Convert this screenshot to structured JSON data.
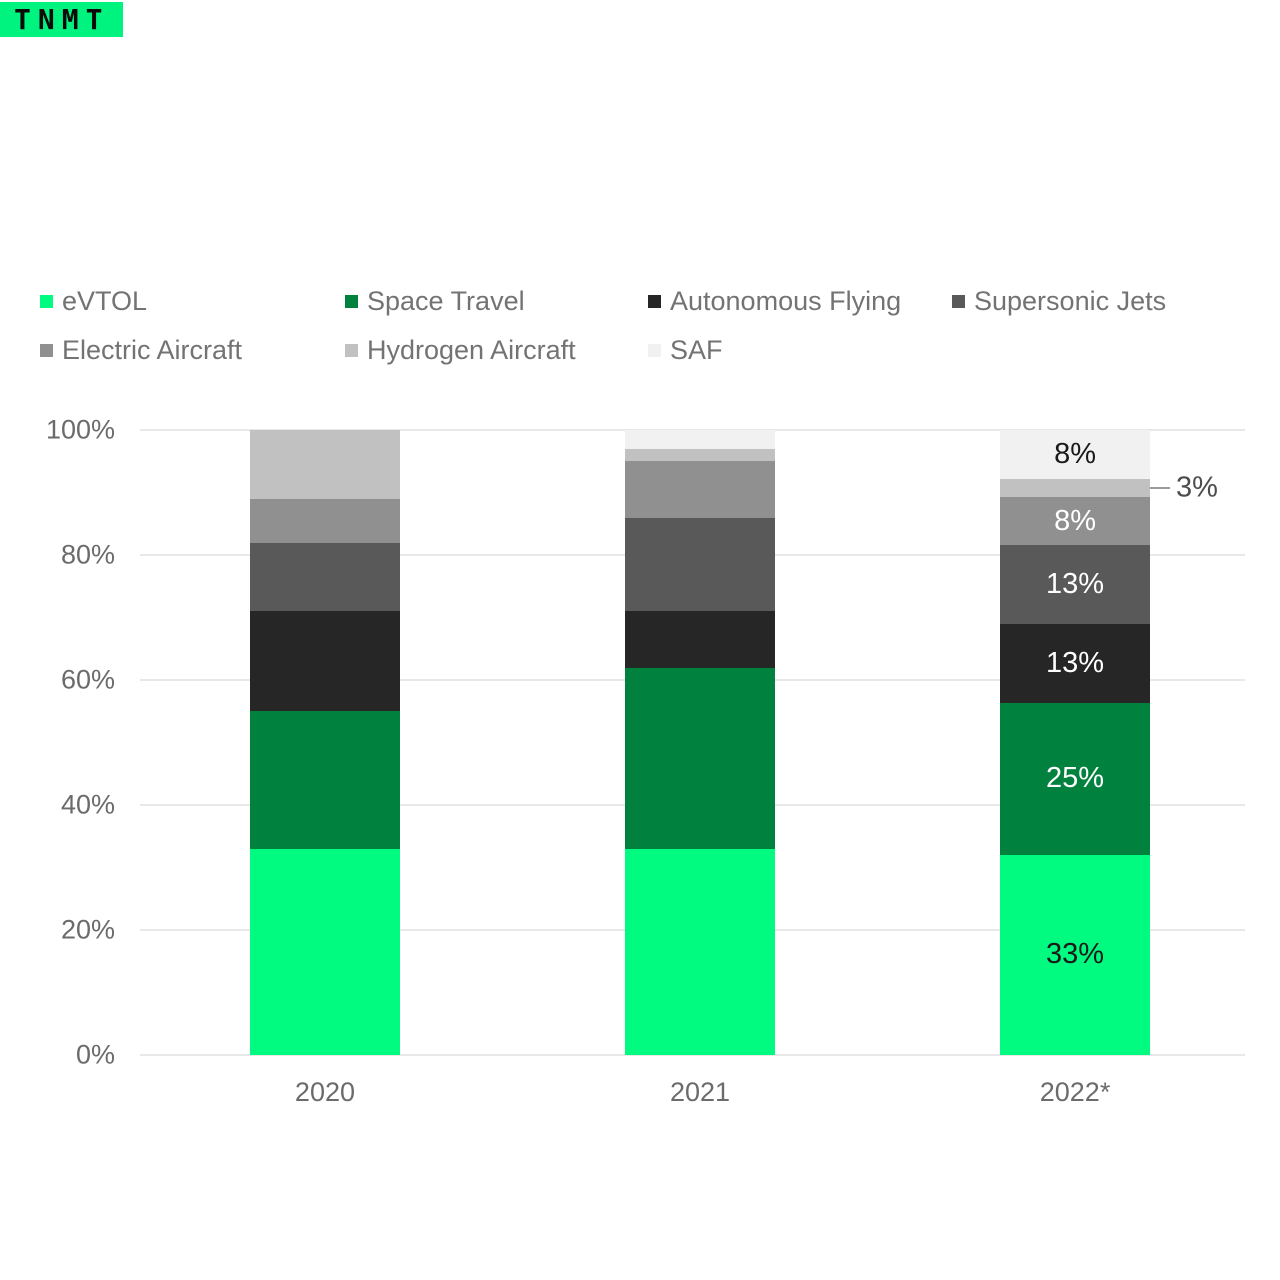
{
  "logo": {
    "text": "TNMT"
  },
  "chart_data": {
    "type": "bar",
    "subtype": "stacked-100-percent",
    "title": "",
    "categories": [
      "2020",
      "2021",
      "2022*"
    ],
    "series": [
      {
        "name": "eVTOL",
        "color": "#00FB80",
        "values": [
          33,
          33,
          33
        ]
      },
      {
        "name": "Space Travel",
        "color": "#00813E",
        "values": [
          22,
          29,
          25
        ]
      },
      {
        "name": "Autonomous Flying",
        "color": "#262626",
        "values": [
          16,
          9,
          13
        ]
      },
      {
        "name": "Supersonic Jets",
        "color": "#595959",
        "values": [
          11,
          15,
          13
        ]
      },
      {
        "name": "Electric Aircraft",
        "color": "#909090",
        "values": [
          7,
          9,
          8
        ]
      },
      {
        "name": "Hydrogen Aircraft",
        "color": "#C1C1C1",
        "values": [
          11,
          2,
          3
        ]
      },
      {
        "name": "SAF",
        "color": "#F1F1F1",
        "values": [
          0,
          3,
          8
        ]
      }
    ],
    "data_labels": {
      "category": "2022*",
      "labels": [
        "33%",
        "25%",
        "13%",
        "13%",
        "8%",
        "3%",
        "8%"
      ],
      "label_text_colors": [
        "#1a1a1a",
        "#ffffff",
        "#ffffff",
        "#ffffff",
        "#ffffff",
        "#4d4d4d",
        "#1a1a1a"
      ]
    },
    "y_ticks": [
      "100%",
      "80%",
      "60%",
      "40%",
      "20%",
      "0%"
    ],
    "ylim": [
      0,
      100
    ],
    "grid": true,
    "legend_position": "top"
  }
}
